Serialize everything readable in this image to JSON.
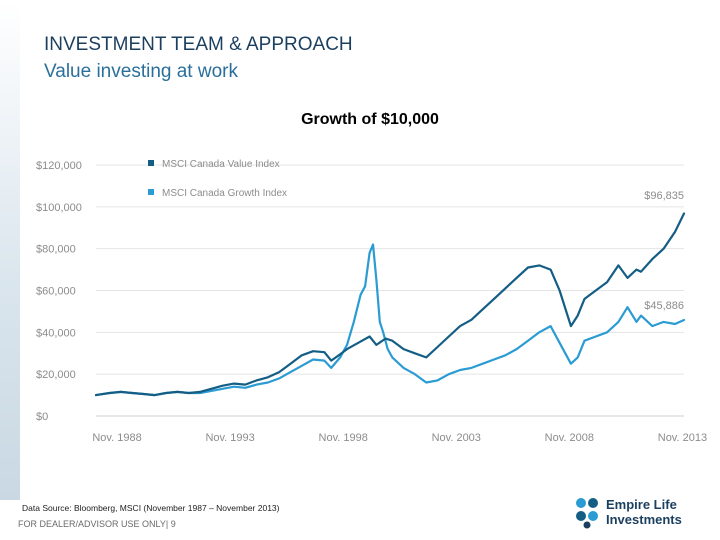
{
  "header": {
    "title": "INVESTMENT TEAM & APPROACH",
    "subtitle": "Value investing at work"
  },
  "footer": {
    "source": "Data Source: Bloomberg, MSCI (November 1987 – November 2013)",
    "usage": "FOR DEALER/ADVISOR USE ONLY| 9"
  },
  "logo": {
    "line1": "Empire Life",
    "line2": "Investments"
  },
  "colors": {
    "value_series": "#145e85",
    "growth_series": "#2b9bd3",
    "axis_text": "#8c8c8c",
    "grid": "#e4e4e4",
    "title_dark": "#1b3f5f",
    "title_light": "#2a6f9b"
  },
  "chart_data": {
    "type": "line",
    "title": "Growth of $10,000",
    "xlabel": "",
    "ylabel": "",
    "xlim": [
      1987.9,
      2013.9
    ],
    "ylim": [
      0,
      120000
    ],
    "legend_position": "top-left",
    "ytick_values": [
      0,
      20000,
      40000,
      60000,
      80000,
      100000,
      120000
    ],
    "ytick_labels": [
      "$0",
      "$20,000",
      "$40,000",
      "$60,000",
      "$80,000",
      "$100,000",
      "$120,000"
    ],
    "xtick_values": [
      1988.83,
      1993.83,
      1998.83,
      2003.83,
      2008.83,
      2013.83
    ],
    "xtick_labels": [
      "Nov. 1988",
      "Nov. 1993",
      "Nov. 1998",
      "Nov. 2003",
      "Nov. 2008",
      "Nov. 2013"
    ],
    "series": [
      {
        "name": "MSCI Canada Value Index",
        "end_label": "$96,835",
        "x": [
          1987.9,
          1988.5,
          1989.0,
          1989.5,
          1990.0,
          1990.5,
          1991.0,
          1991.5,
          1992.0,
          1992.5,
          1993.0,
          1993.5,
          1994.0,
          1994.5,
          1995.0,
          1995.5,
          1996.0,
          1996.5,
          1997.0,
          1997.5,
          1998.0,
          1998.3,
          1998.7,
          1999.0,
          1999.5,
          2000.0,
          2000.3,
          2000.7,
          2001.0,
          2001.5,
          2002.0,
          2002.5,
          2003.0,
          2003.5,
          2004.0,
          2004.5,
          2005.0,
          2005.5,
          2006.0,
          2006.5,
          2007.0,
          2007.5,
          2008.0,
          2008.4,
          2008.9,
          2009.2,
          2009.5,
          2010.0,
          2010.5,
          2011.0,
          2011.4,
          2011.8,
          2012.0,
          2012.5,
          2013.0,
          2013.5,
          2013.9
        ],
        "values": [
          10000,
          11000,
          11500,
          11000,
          10500,
          10000,
          11000,
          11500,
          11000,
          11500,
          13000,
          14500,
          15500,
          15000,
          17000,
          18500,
          21000,
          25000,
          29000,
          31000,
          30500,
          26500,
          29500,
          32000,
          35000,
          38000,
          34000,
          37000,
          36000,
          32000,
          30000,
          28000,
          33000,
          38000,
          43000,
          46000,
          51000,
          56000,
          61000,
          66000,
          71000,
          72000,
          70000,
          60000,
          43000,
          48000,
          56000,
          60000,
          64000,
          72000,
          66000,
          70000,
          69000,
          75000,
          80000,
          88000,
          96835
        ]
      },
      {
        "name": "MSCI Canada Growth Index",
        "end_label": "$45,886",
        "x": [
          1987.9,
          1988.5,
          1989.0,
          1989.5,
          1990.0,
          1990.5,
          1991.0,
          1991.5,
          1992.0,
          1992.5,
          1993.0,
          1993.5,
          1994.0,
          1994.5,
          1995.0,
          1995.5,
          1996.0,
          1996.5,
          1997.0,
          1997.5,
          1998.0,
          1998.3,
          1998.7,
          1999.0,
          1999.3,
          1999.6,
          1999.8,
          2000.0,
          2000.15,
          2000.3,
          2000.45,
          2000.6,
          2000.8,
          2001.0,
          2001.5,
          2002.0,
          2002.5,
          2003.0,
          2003.5,
          2004.0,
          2004.5,
          2005.0,
          2005.5,
          2006.0,
          2006.5,
          2007.0,
          2007.5,
          2008.0,
          2008.4,
          2008.9,
          2009.2,
          2009.5,
          2010.0,
          2010.5,
          2011.0,
          2011.4,
          2011.8,
          2012.0,
          2012.5,
          2013.0,
          2013.5,
          2013.9
        ],
        "values": [
          10000,
          11000,
          11500,
          11000,
          10500,
          10000,
          11000,
          11500,
          11000,
          11000,
          12000,
          13000,
          14000,
          13500,
          15000,
          16000,
          18000,
          21000,
          24000,
          27000,
          26500,
          23000,
          28000,
          34000,
          45000,
          58000,
          62000,
          78000,
          82000,
          65000,
          45000,
          40000,
          32000,
          28000,
          23000,
          20000,
          16000,
          17000,
          20000,
          22000,
          23000,
          25000,
          27000,
          29000,
          32000,
          36000,
          40000,
          43000,
          35000,
          25000,
          28000,
          36000,
          38000,
          40000,
          45000,
          52000,
          45000,
          48000,
          43000,
          45000,
          44000,
          45886
        ]
      }
    ]
  }
}
